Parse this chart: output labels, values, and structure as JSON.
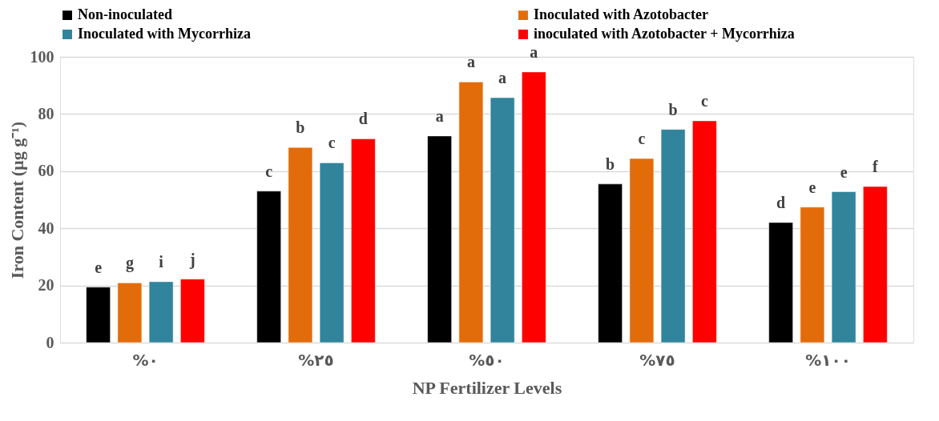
{
  "chart_data": {
    "type": "bar",
    "xlabel": "NP Fertilizer Levels",
    "ylabel": "Iron Content (µg g⁻¹)",
    "categories": [
      "%٠",
      "%٢٥",
      "%٥٠",
      "%٧٥",
      "%١٠٠"
    ],
    "series": [
      {
        "name": "Non-inoculated",
        "color": "#000000",
        "values": [
          19.4,
          53.0,
          72.3,
          55.5,
          42.0
        ],
        "value_labels": [
          "e",
          "c",
          "a",
          "b",
          "d"
        ]
      },
      {
        "name": "Inoculated with Azotobacter",
        "color": "#e36c0a",
        "values": [
          20.9,
          68.3,
          91.2,
          64.4,
          47.4
        ],
        "value_labels": [
          "g",
          "b",
          "a",
          "c",
          "e"
        ]
      },
      {
        "name": "Inoculated with Mycorrhiza",
        "color": "#31849b",
        "values": [
          21.3,
          62.9,
          85.7,
          74.6,
          52.8
        ],
        "value_labels": [
          "i",
          "c",
          "a",
          "b",
          "e"
        ]
      },
      {
        "name": "inoculated with Azotobacter + Mycorrhiza",
        "color": "#ff0000",
        "values": [
          22.2,
          71.3,
          94.7,
          77.6,
          54.6
        ],
        "value_labels": [
          "j",
          "d",
          "a",
          "c",
          "f"
        ]
      }
    ],
    "ylim": [
      0,
      100
    ],
    "yticks": [
      0,
      20,
      40,
      60,
      80,
      100
    ],
    "grid": "y",
    "legend": "top"
  }
}
